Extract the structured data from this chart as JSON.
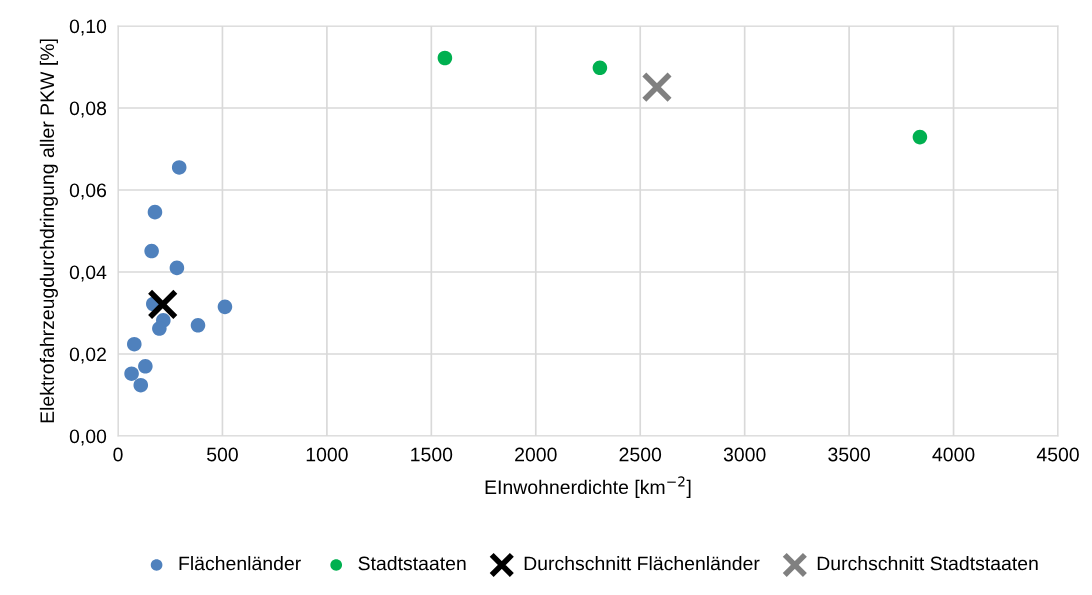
{
  "chart_data": {
    "type": "scatter",
    "xlabel": "EInwohnerdichte [km$^{−2}$]",
    "ylabel": "Elektrofahrzeugdurchdringung aller PKW [%]",
    "xlim": [
      0,
      4500
    ],
    "xticks": [
      0,
      500,
      1000,
      1500,
      2000,
      2500,
      3000,
      3500,
      4000,
      4500
    ],
    "ylim": [
      0,
      0.1
    ],
    "yticks": [
      {
        "value": 0,
        "label": "0,00"
      },
      {
        "value": 0.02,
        "label": "0,02"
      },
      {
        "value": 0.04,
        "label": "0,04"
      },
      {
        "value": 0.06,
        "label": "0,06"
      },
      {
        "value": 0.08,
        "label": "0,08"
      },
      {
        "value": 0.1,
        "label": "0,10"
      }
    ],
    "grid": true,
    "legend": "bottom",
    "series": [
      {
        "name": "Flächenländer",
        "color": "#4f81bd",
        "marker": "circle",
        "x": [
          293,
          177,
          161,
          282,
          169,
          512,
          217,
          198,
          383,
          78,
          131,
          65,
          109
        ],
        "values": [
          0.0655,
          0.0546,
          0.0451,
          0.041,
          0.0322,
          0.0315,
          0.0282,
          0.0262,
          0.027,
          0.0224,
          0.017,
          0.0152,
          0.0124
        ]
      },
      {
        "name": "Stadtstaaten",
        "color": "#00b050",
        "marker": "circle",
        "x": [
          1565,
          2307,
          3839
        ],
        "values": [
          0.0922,
          0.0898,
          0.0729
        ]
      },
      {
        "name": "Durchschnitt Flächenländer",
        "color": "#000000",
        "marker": "cross",
        "x": [
          214
        ],
        "values": [
          0.0321
        ]
      },
      {
        "name": "Durchschnitt Stadtstaaten",
        "color": "#808080",
        "marker": "cross",
        "x": [
          2580
        ],
        "values": [
          0.0851
        ]
      }
    ]
  }
}
